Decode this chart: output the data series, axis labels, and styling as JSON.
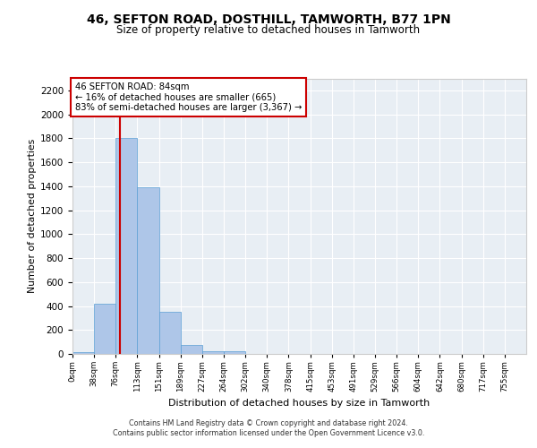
{
  "title1": "46, SEFTON ROAD, DOSTHILL, TAMWORTH, B77 1PN",
  "title2": "Size of property relative to detached houses in Tamworth",
  "xlabel": "Distribution of detached houses by size in Tamworth",
  "ylabel": "Number of detached properties",
  "bin_labels": [
    "0sqm",
    "38sqm",
    "76sqm",
    "113sqm",
    "151sqm",
    "189sqm",
    "227sqm",
    "264sqm",
    "302sqm",
    "340sqm",
    "378sqm",
    "415sqm",
    "453sqm",
    "491sqm",
    "529sqm",
    "566sqm",
    "604sqm",
    "642sqm",
    "680sqm",
    "717sqm",
    "755sqm"
  ],
  "bar_values": [
    15,
    420,
    1800,
    1390,
    350,
    75,
    25,
    20,
    0,
    0,
    0,
    0,
    0,
    0,
    0,
    0,
    0,
    0,
    0,
    0,
    0
  ],
  "bar_color": "#aec6e8",
  "bar_edge_color": "#5a9fd4",
  "vline_color": "#cc0000",
  "annotation_text": "46 SEFTON ROAD: 84sqm\n← 16% of detached houses are smaller (665)\n83% of semi-detached houses are larger (3,367) →",
  "annotation_box_color": "#ffffff",
  "annotation_box_edge_color": "#cc0000",
  "ylim": [
    0,
    2300
  ],
  "yticks": [
    0,
    200,
    400,
    600,
    800,
    1000,
    1200,
    1400,
    1600,
    1800,
    2000,
    2200
  ],
  "bg_color": "#e8eef4",
  "footer_line1": "Contains HM Land Registry data © Crown copyright and database right 2024.",
  "footer_line2": "Contains public sector information licensed under the Open Government Licence v3.0."
}
